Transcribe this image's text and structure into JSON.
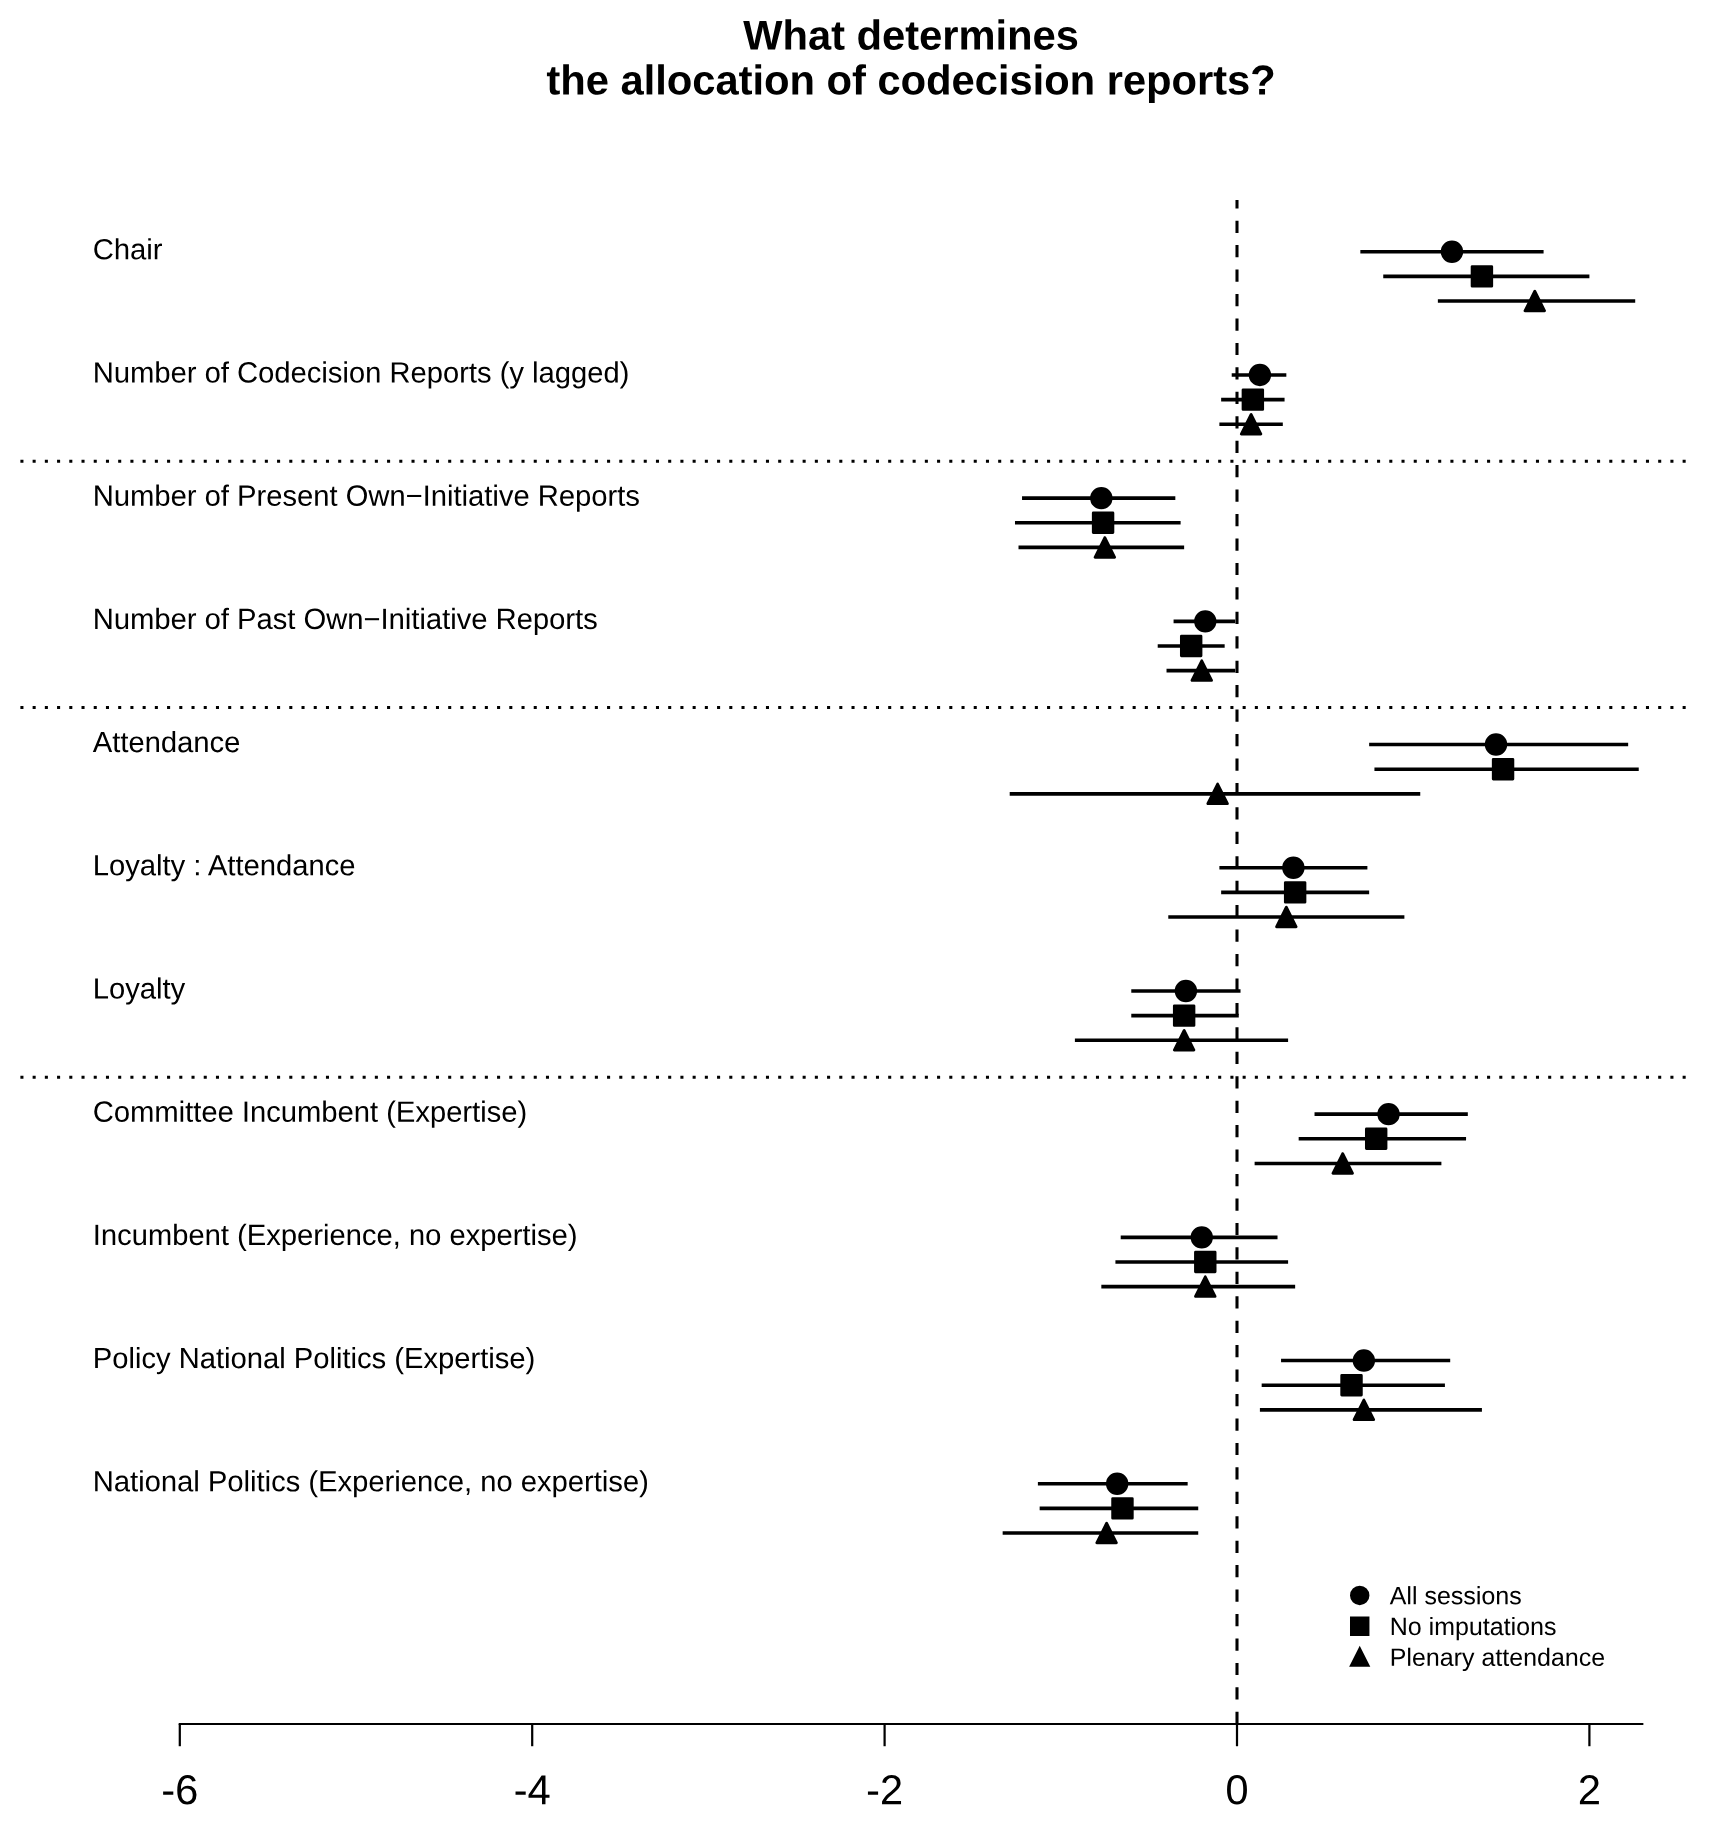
{
  "chart_data": {
    "type": "scatter",
    "orientation": "horizontal",
    "title": "What determines\nthe allocation of codecision reports?",
    "categories": [
      "Chair",
      "Number of Codecision Reports (y lagged)",
      "Number of Present Own−Initiative Reports",
      "Number of Past Own−Initiative Reports",
      "Attendance",
      "Loyalty : Attendance",
      "Loyalty",
      "Committee Incumbent (Expertise)",
      "Incumbent (Experience, no expertise)",
      "Policy National Politics (Expertise)",
      "National Politics (Experience, no expertise)"
    ],
    "series": [
      {
        "name": "All sessions",
        "color": "#000000",
        "marker": "circle",
        "values": [
          1.22,
          0.13,
          -0.77,
          -0.18,
          1.47,
          0.32,
          -0.29,
          0.86,
          -0.2,
          0.72,
          -0.68
        ],
        "errors": [
          [
            0.7,
            1.74
          ],
          [
            -0.03,
            0.28
          ],
          [
            -1.22,
            -0.35
          ],
          [
            -0.36,
            -0.01
          ],
          [
            0.75,
            2.22
          ],
          [
            -0.1,
            0.74
          ],
          [
            -0.6,
            0.02
          ],
          [
            0.44,
            1.31
          ],
          [
            -0.66,
            0.23
          ],
          [
            0.25,
            1.21
          ],
          [
            -1.13,
            -0.28
          ]
        ]
      },
      {
        "name": "No imputations",
        "color": "#000000",
        "marker": "square",
        "values": [
          1.39,
          0.09,
          -0.76,
          -0.26,
          1.51,
          0.33,
          -0.3,
          0.79,
          -0.18,
          0.65,
          -0.65
        ],
        "errors": [
          [
            0.83,
            2.0
          ],
          [
            -0.09,
            0.27
          ],
          [
            -1.26,
            -0.32
          ],
          [
            -0.45,
            -0.07
          ],
          [
            0.78,
            2.28
          ],
          [
            -0.09,
            0.75
          ],
          [
            -0.6,
            0.01
          ],
          [
            0.35,
            1.3
          ],
          [
            -0.69,
            0.29
          ],
          [
            0.14,
            1.18
          ],
          [
            -1.12,
            -0.22
          ]
        ]
      },
      {
        "name": "Plenary attendance",
        "color": "#000000",
        "marker": "triangle",
        "values": [
          1.69,
          0.08,
          -0.75,
          -0.2,
          -0.11,
          0.28,
          -0.3,
          0.6,
          -0.18,
          0.72,
          -0.74
        ],
        "errors": [
          [
            1.14,
            2.26
          ],
          [
            -0.1,
            0.26
          ],
          [
            -1.24,
            -0.3
          ],
          [
            -0.4,
            -0.01
          ],
          [
            -1.29,
            1.04
          ],
          [
            -0.39,
            0.95
          ],
          [
            -0.92,
            0.29
          ],
          [
            0.1,
            1.16
          ],
          [
            -0.77,
            0.33
          ],
          [
            0.13,
            1.39
          ],
          [
            -1.33,
            -0.22
          ]
        ]
      }
    ],
    "xlim": [
      -6,
      2.3
    ],
    "xticks": [
      -6,
      -4,
      -2,
      0,
      2
    ],
    "ref_lines": [
      {
        "axis": "x",
        "value": 0,
        "line_style": "dashed",
        "color": "#000000"
      }
    ],
    "legend": "bottom right",
    "grid": false
  }
}
